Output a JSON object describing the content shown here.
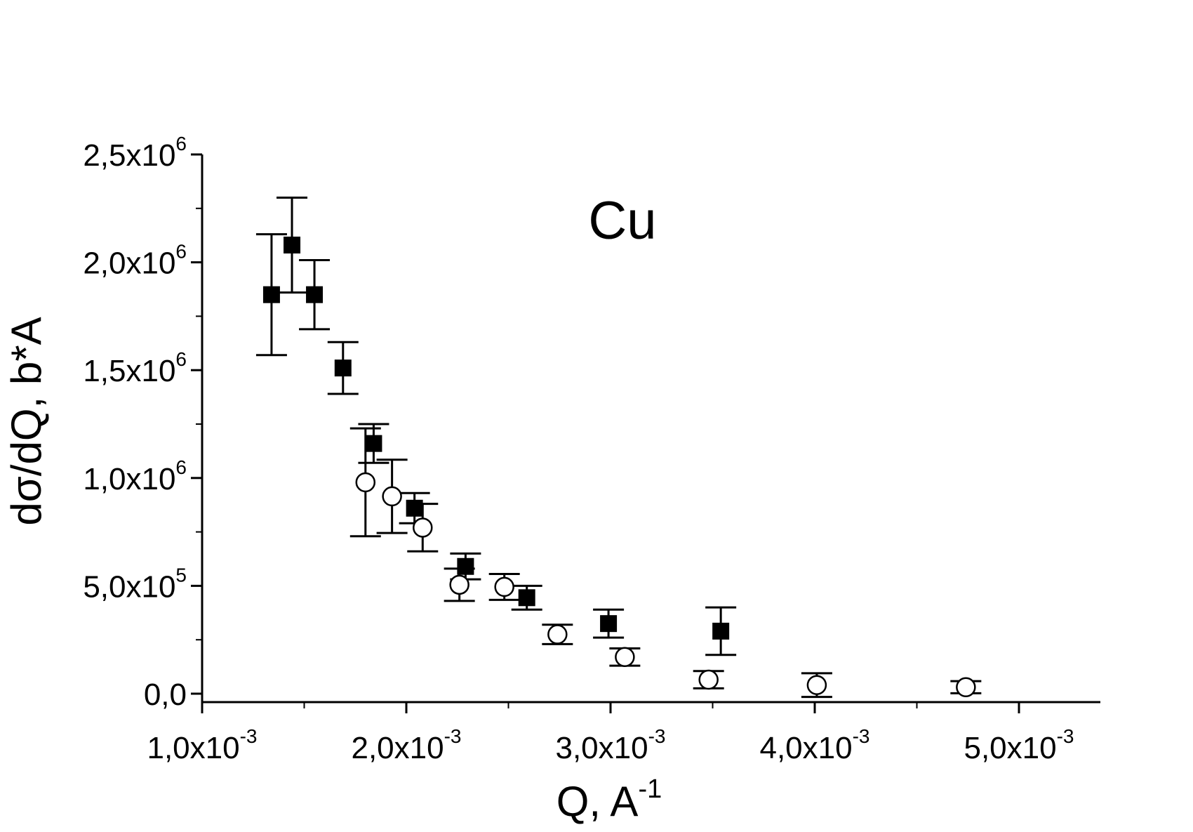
{
  "chart_data": {
    "type": "scatter",
    "title": "",
    "annotation": "Cu",
    "xlabel": {
      "base": "Q, A",
      "sup": "-1"
    },
    "ylabel": "dσ/dQ, b*A",
    "xlim": [
      0.001,
      0.0054
    ],
    "ylim": [
      -30000,
      2500000
    ],
    "x_ticks": [
      {
        "value": 0.001,
        "mantissa": "1,0x10",
        "exp": "-3"
      },
      {
        "value": 0.002,
        "mantissa": "2,0x10",
        "exp": "-3"
      },
      {
        "value": 0.003,
        "mantissa": "3,0x10",
        "exp": "-3"
      },
      {
        "value": 0.004,
        "mantissa": "4,0x10",
        "exp": "-3"
      },
      {
        "value": 0.005,
        "mantissa": "5,0x10",
        "exp": "-3"
      }
    ],
    "x_minor_ticks": [
      0.0015,
      0.0025,
      0.0035,
      0.0045
    ],
    "y_ticks": [
      {
        "value": 0,
        "mantissa": "0,0",
        "exp": ""
      },
      {
        "value": 500000,
        "mantissa": "5,0x10",
        "exp": "5"
      },
      {
        "value": 1000000,
        "mantissa": "1,0x10",
        "exp": "6"
      },
      {
        "value": 1500000,
        "mantissa": "1,5x10",
        "exp": "6"
      },
      {
        "value": 2000000,
        "mantissa": "2,0x10",
        "exp": "6"
      },
      {
        "value": 2500000,
        "mantissa": "2,5x10",
        "exp": "6"
      }
    ],
    "y_minor_ticks": [
      250000,
      750000,
      1250000,
      1750000,
      2250000
    ],
    "grid": false,
    "series": [
      {
        "marker": "filled-square",
        "color": "#000000",
        "points": [
          {
            "x": 0.00134,
            "y": 1850000,
            "err": 280000
          },
          {
            "x": 0.00144,
            "y": 2080000,
            "err": 220000
          },
          {
            "x": 0.00155,
            "y": 1850000,
            "err": 160000
          },
          {
            "x": 0.00169,
            "y": 1510000,
            "err": 120000
          },
          {
            "x": 0.00184,
            "y": 1160000,
            "err": 90000
          },
          {
            "x": 0.00204,
            "y": 860000,
            "err": 70000
          },
          {
            "x": 0.00229,
            "y": 590000,
            "err": 60000
          },
          {
            "x": 0.00259,
            "y": 445000,
            "err": 55000
          },
          {
            "x": 0.00299,
            "y": 325000,
            "err": 65000
          },
          {
            "x": 0.00354,
            "y": 290000,
            "err": 110000
          }
        ]
      },
      {
        "marker": "open-circle",
        "color": "#000000",
        "points": [
          {
            "x": 0.0018,
            "y": 980000,
            "err": 250000
          },
          {
            "x": 0.00193,
            "y": 915000,
            "err": 170000
          },
          {
            "x": 0.00208,
            "y": 770000,
            "err": 110000
          },
          {
            "x": 0.00226,
            "y": 505000,
            "err": 75000
          },
          {
            "x": 0.00248,
            "y": 495000,
            "err": 60000
          },
          {
            "x": 0.00274,
            "y": 275000,
            "err": 45000
          },
          {
            "x": 0.00307,
            "y": 170000,
            "err": 40000
          },
          {
            "x": 0.00348,
            "y": 65000,
            "err": 40000
          },
          {
            "x": 0.00401,
            "y": 40000,
            "err": 55000
          },
          {
            "x": 0.00474,
            "y": 30000,
            "err": 28000
          }
        ]
      }
    ]
  }
}
